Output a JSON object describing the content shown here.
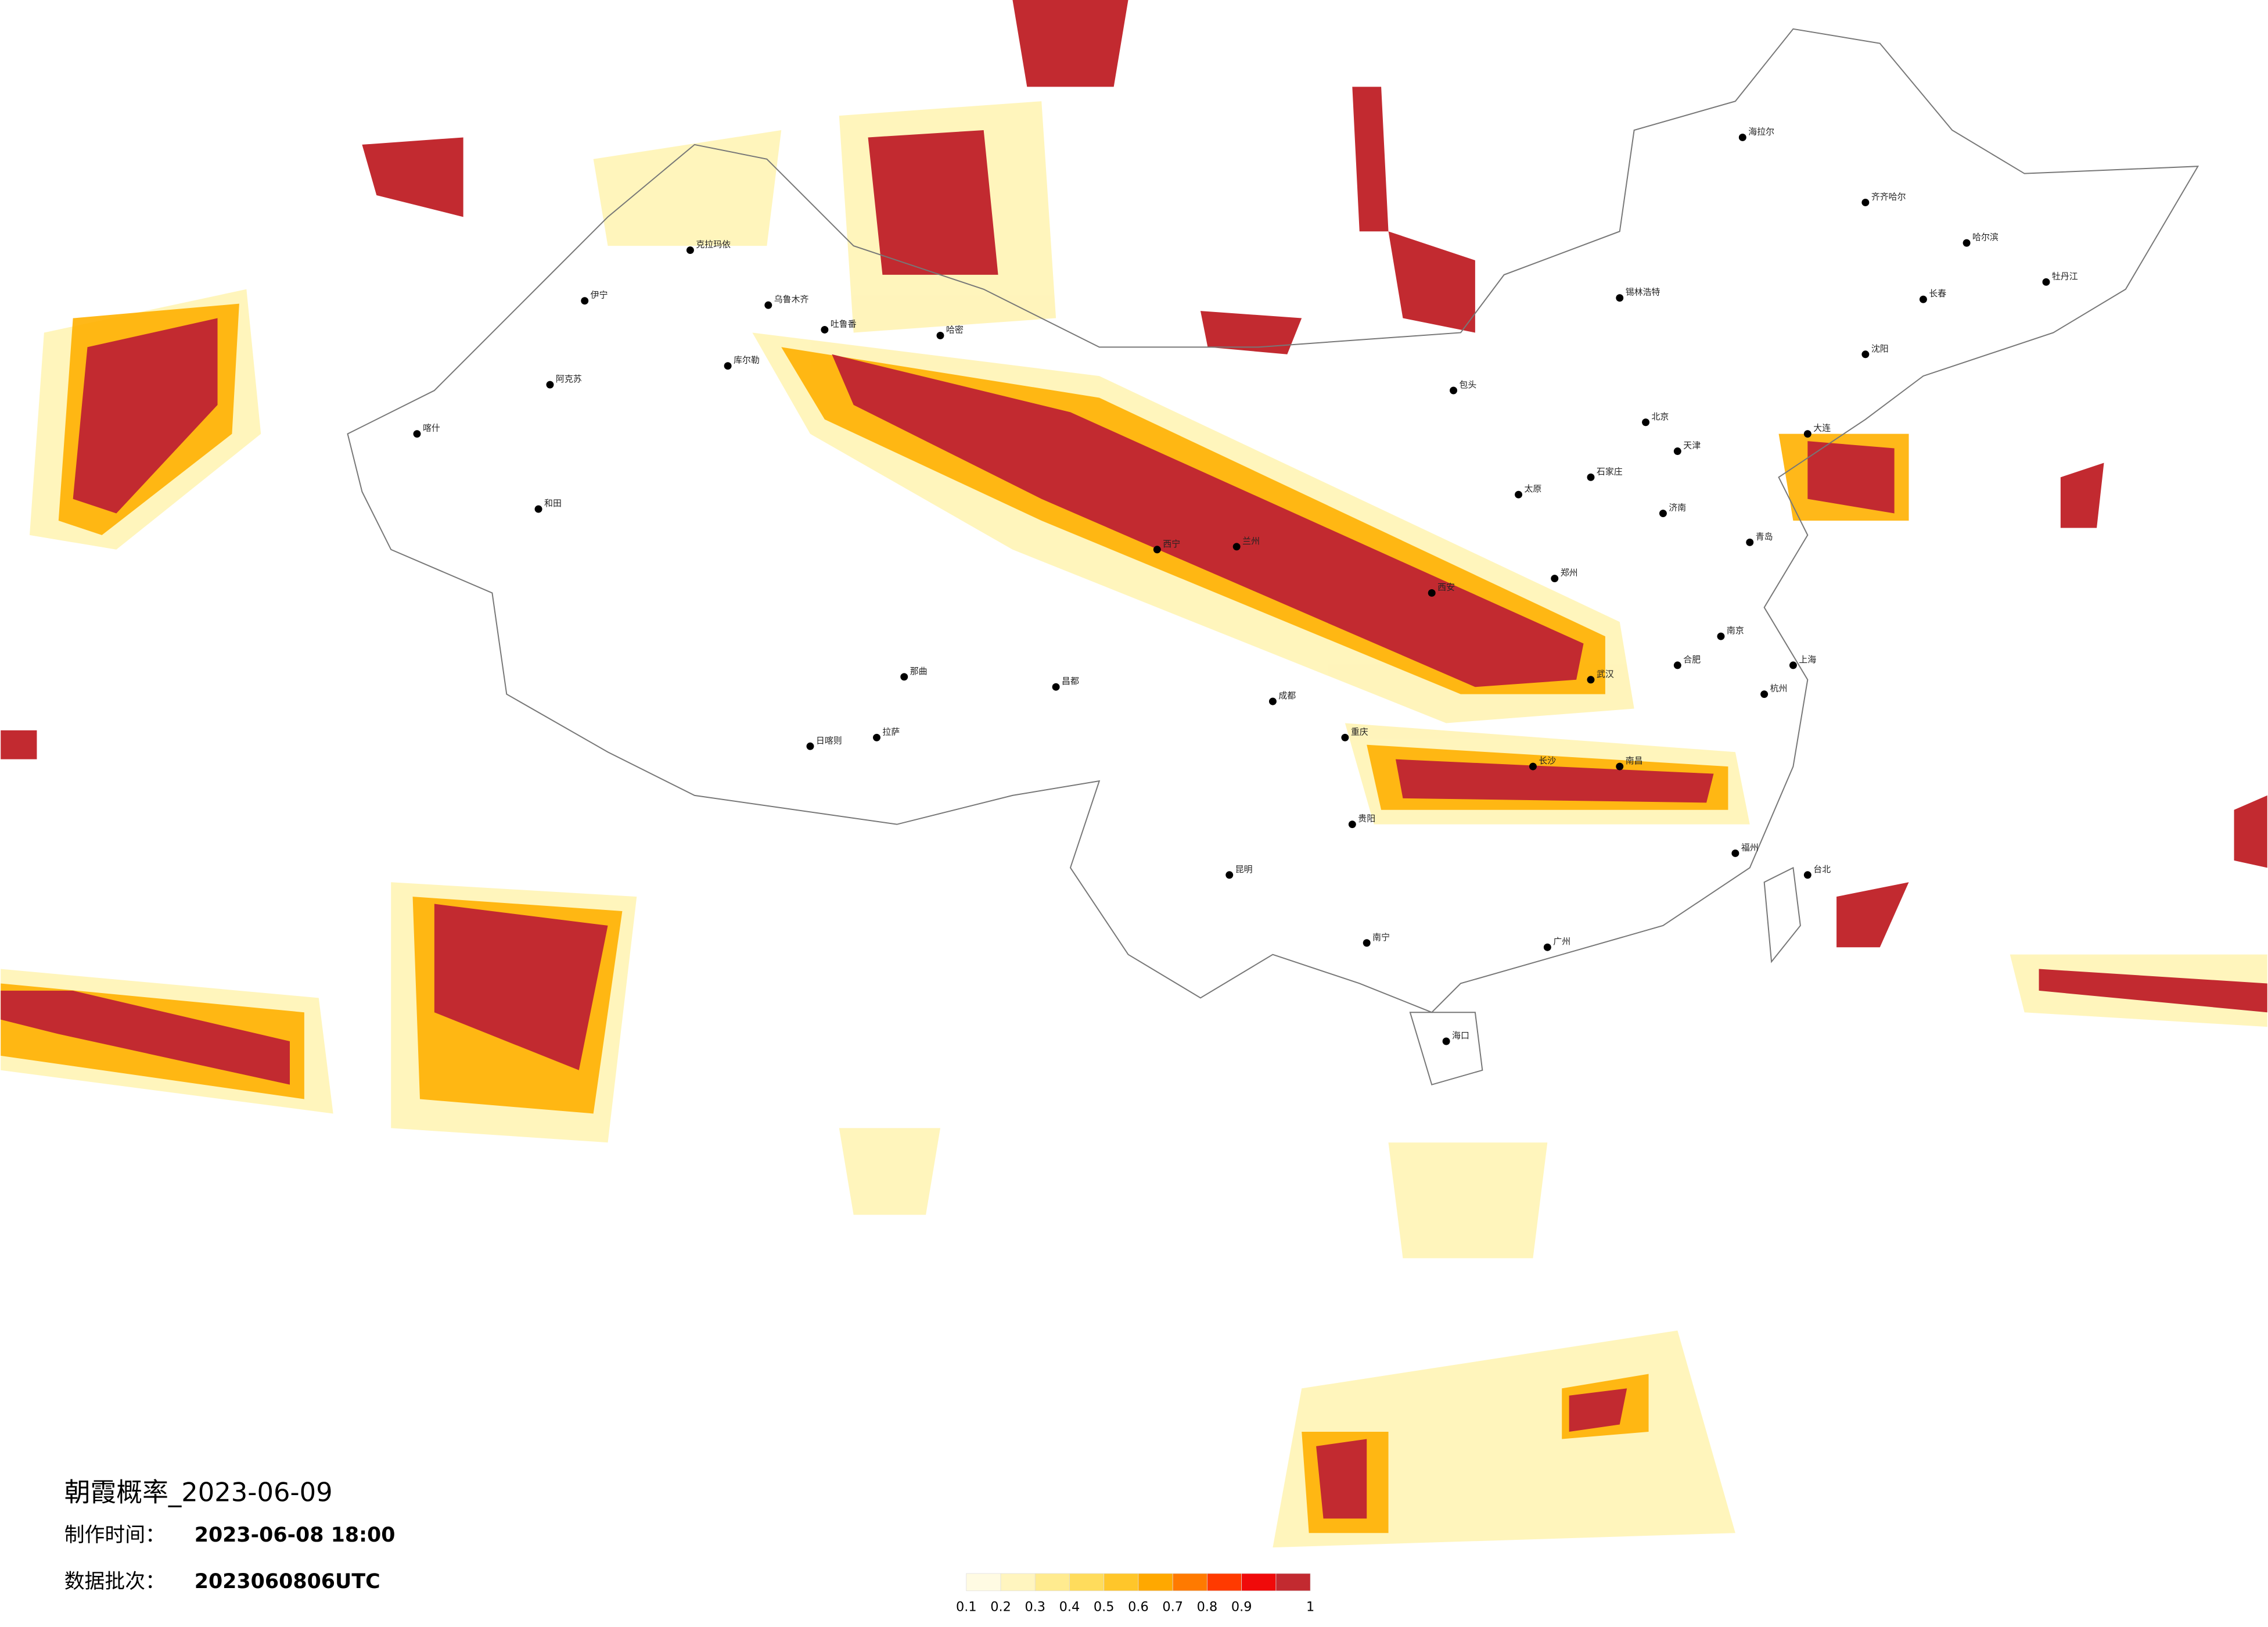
{
  "title": "朝霞概率_2023-06-09",
  "production_time": {
    "label": "制作时间：",
    "value": "2023-06-08 18:00"
  },
  "data_batch": {
    "label": "数据批次：",
    "value": "2023060806UTC"
  },
  "legend": {
    "colors": [
      "#fffbe3",
      "#fff5bf",
      "#ffeb8f",
      "#ffdc5c",
      "#ffc62a",
      "#ffa800",
      "#ff7a00",
      "#ff3a00",
      "#f00a0a",
      "#c22a30"
    ],
    "labels": [
      "0.1",
      "0.2",
      "0.3",
      "0.4",
      "0.5",
      "0.6",
      "0.7",
      "0.8",
      "0.9",
      "1"
    ]
  },
  "cities": [
    "哈尔滨",
    "长春",
    "沈阳",
    "北京",
    "天津",
    "石家庄",
    "太原",
    "济南",
    "郑州",
    "西安",
    "兰州",
    "西宁",
    "包头",
    "乌鲁木齐",
    "克拉玛依",
    "伊宁",
    "阿克苏",
    "喀什",
    "和田",
    "库尔勒",
    "吐鲁番",
    "哈密",
    "日喀则",
    "拉萨",
    "那曲",
    "昌都",
    "成都",
    "重庆",
    "贵阳",
    "昆明",
    "南宁",
    "广州",
    "长沙",
    "武汉",
    "南京",
    "上海",
    "杭州",
    "福州",
    "台北",
    "海口",
    "青岛",
    "大连",
    "合肥",
    "南昌",
    "齐齐哈尔",
    "海拉尔",
    "牡丹江",
    "锡林浩特"
  ]
}
